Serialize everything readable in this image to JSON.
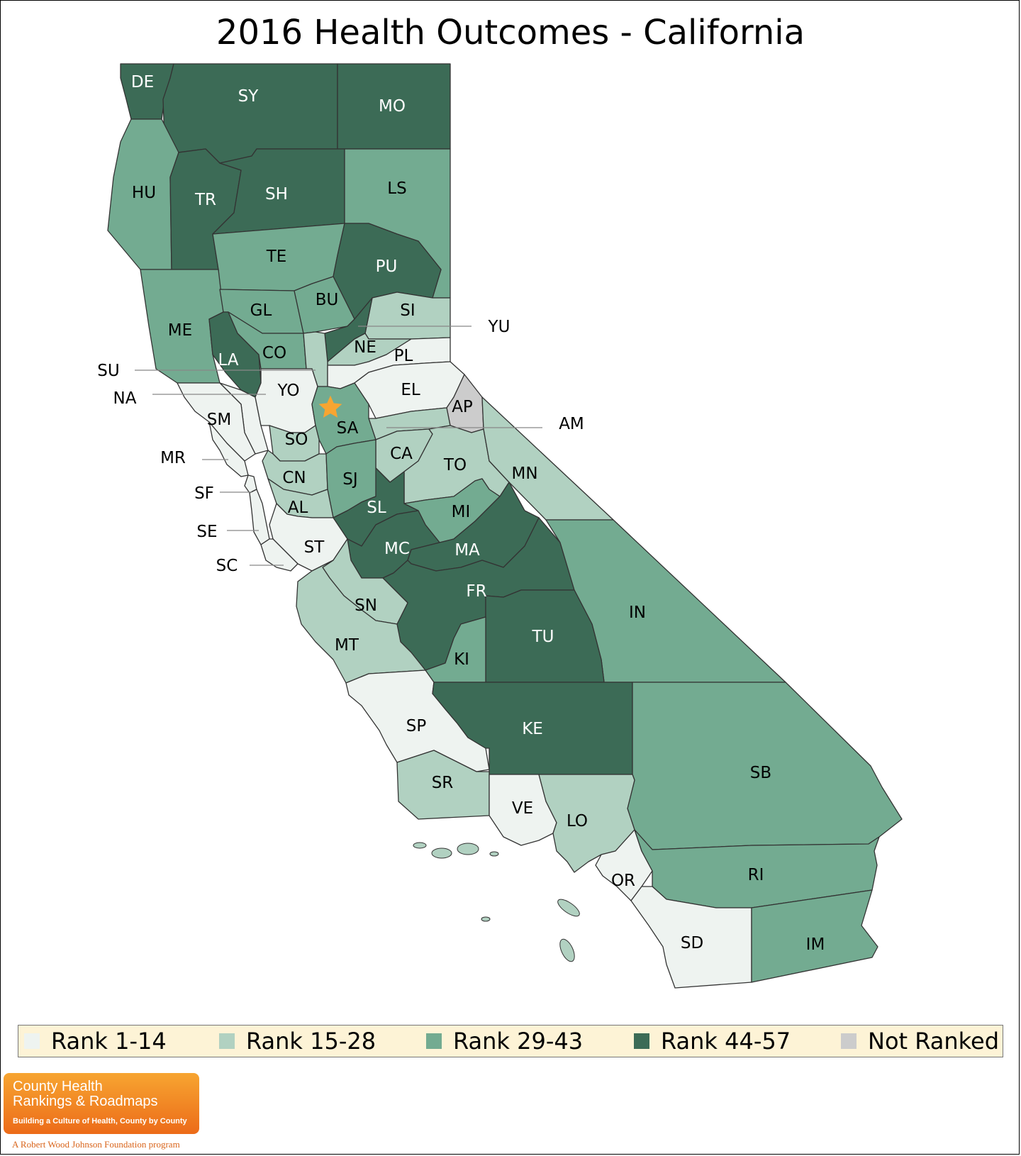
{
  "title": "2016 Health Outcomes - California",
  "colors": {
    "rank_1_14": "#eef3f0",
    "rank_15_28": "#b1d1c1",
    "rank_29_43": "#73ab91",
    "rank_44_57": "#3c6b56",
    "not_ranked": "#cccccc",
    "star": "#f7a531",
    "legend_bg": "#fdf3d6",
    "brand": "#ec6b19"
  },
  "legend": [
    {
      "label": "Rank 1-14",
      "color": "#eef3f0"
    },
    {
      "label": "Rank 15-28",
      "color": "#b1d1c1"
    },
    {
      "label": "Rank 29-43",
      "color": "#73ab91"
    },
    {
      "label": "Rank 44-57",
      "color": "#3c6b56"
    },
    {
      "label": "Not Ranked",
      "color": "#cccccc"
    }
  ],
  "counties": [
    {
      "code": "DE",
      "tier": 4
    },
    {
      "code": "SY",
      "tier": 4
    },
    {
      "code": "MO",
      "tier": 4
    },
    {
      "code": "HU",
      "tier": 3
    },
    {
      "code": "TR",
      "tier": 4
    },
    {
      "code": "SH",
      "tier": 4
    },
    {
      "code": "LS",
      "tier": 3
    },
    {
      "code": "TE",
      "tier": 3
    },
    {
      "code": "PU",
      "tier": 4
    },
    {
      "code": "ME",
      "tier": 3
    },
    {
      "code": "GL",
      "tier": 3
    },
    {
      "code": "BU",
      "tier": 3
    },
    {
      "code": "SI",
      "tier": 2
    },
    {
      "code": "YU",
      "tier": 4
    },
    {
      "code": "NE",
      "tier": 2
    },
    {
      "code": "LA",
      "tier": 4
    },
    {
      "code": "CO",
      "tier": 3
    },
    {
      "code": "SU",
      "tier": 2
    },
    {
      "code": "PL",
      "tier": 1
    },
    {
      "code": "NA",
      "tier": 1
    },
    {
      "code": "YO",
      "tier": 1
    },
    {
      "code": "EL",
      "tier": 1
    },
    {
      "code": "AP",
      "tier": 0
    },
    {
      "code": "AM",
      "tier": 2
    },
    {
      "code": "SM",
      "tier": 1
    },
    {
      "code": "SA",
      "tier": 3
    },
    {
      "code": "SO",
      "tier": 2
    },
    {
      "code": "CA",
      "tier": 2
    },
    {
      "code": "TO",
      "tier": 2
    },
    {
      "code": "MR",
      "tier": 1
    },
    {
      "code": "MN",
      "tier": 2
    },
    {
      "code": "CN",
      "tier": 2
    },
    {
      "code": "SJ",
      "tier": 3
    },
    {
      "code": "SF",
      "tier": 1
    },
    {
      "code": "AL",
      "tier": 2
    },
    {
      "code": "SL",
      "tier": 4
    },
    {
      "code": "MI",
      "tier": 3
    },
    {
      "code": "SE",
      "tier": 1
    },
    {
      "code": "ST",
      "tier": 1
    },
    {
      "code": "MC",
      "tier": 4
    },
    {
      "code": "MA",
      "tier": 4
    },
    {
      "code": "SC",
      "tier": 1
    },
    {
      "code": "FR",
      "tier": 4
    },
    {
      "code": "IN",
      "tier": 3
    },
    {
      "code": "SN",
      "tier": 2
    },
    {
      "code": "TU",
      "tier": 4
    },
    {
      "code": "MT",
      "tier": 2
    },
    {
      "code": "KI",
      "tier": 3
    },
    {
      "code": "SP",
      "tier": 1
    },
    {
      "code": "KE",
      "tier": 4
    },
    {
      "code": "SB",
      "tier": 3
    },
    {
      "code": "SR",
      "tier": 2
    },
    {
      "code": "VE",
      "tier": 1
    },
    {
      "code": "LO",
      "tier": 2
    },
    {
      "code": "OR",
      "tier": 1
    },
    {
      "code": "RI",
      "tier": 3
    },
    {
      "code": "SD",
      "tier": 1
    },
    {
      "code": "IM",
      "tier": 3
    }
  ],
  "brand": {
    "line1": "County Health",
    "line2": "Rankings & Roadmaps",
    "tagline": "Building a Culture of Health, County by County",
    "footer": "A Robert Wood Johnson Foundation program"
  }
}
